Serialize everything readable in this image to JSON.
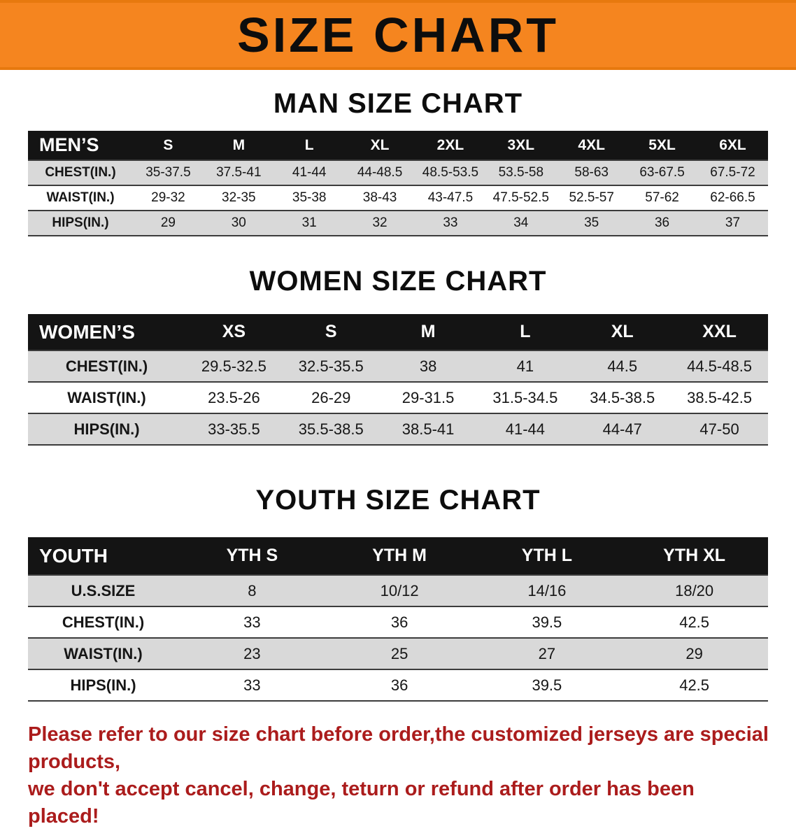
{
  "colors": {
    "banner_bg": "#F5851F",
    "table_header_bg": "#141414",
    "row_alt_gray": "#D9D9D9",
    "footer_text": "#AB1C1C"
  },
  "banner": {
    "title": "SIZE CHART"
  },
  "sections": [
    {
      "heading": "MAN SIZE CHART",
      "table": {
        "header": [
          "MEN’S",
          "S",
          "M",
          "L",
          "XL",
          "2XL",
          "3XL",
          "4XL",
          "5XL",
          "6XL"
        ],
        "rows": [
          [
            "CHEST(IN.)",
            "35-37.5",
            "37.5-41",
            "41-44",
            "44-48.5",
            "48.5-53.5",
            "53.5-58",
            "58-63",
            "63-67.5",
            "67.5-72"
          ],
          [
            "WAIST(IN.)",
            "29-32",
            "32-35",
            "35-38",
            "38-43",
            "43-47.5",
            "47.5-52.5",
            "52.5-57",
            "57-62",
            "62-66.5"
          ],
          [
            "HIPS(IN.)",
            "29",
            "30",
            "31",
            "32",
            "33",
            "34",
            "35",
            "36",
            "37"
          ]
        ]
      }
    },
    {
      "heading": "WOMEN SIZE CHART",
      "table": {
        "header": [
          "WOMEN’S",
          "XS",
          "S",
          "M",
          "L",
          "XL",
          "XXL"
        ],
        "rows": [
          [
            "CHEST(IN.)",
            "29.5-32.5",
            "32.5-35.5",
            "38",
            "41",
            "44.5",
            "44.5-48.5"
          ],
          [
            "WAIST(IN.)",
            "23.5-26",
            "26-29",
            "29-31.5",
            "31.5-34.5",
            "34.5-38.5",
            "38.5-42.5"
          ],
          [
            "HIPS(IN.)",
            "33-35.5",
            "35.5-38.5",
            "38.5-41",
            "41-44",
            "44-47",
            "47-50"
          ]
        ]
      }
    },
    {
      "heading": "YOUTH SIZE CHART",
      "table": {
        "header": [
          "YOUTH",
          "YTH S",
          "YTH M",
          "YTH L",
          "YTH XL"
        ],
        "rows": [
          [
            "U.S.SIZE",
            "8",
            "10/12",
            "14/16",
            "18/20"
          ],
          [
            "CHEST(IN.)",
            "33",
            "36",
            "39.5",
            "42.5"
          ],
          [
            "WAIST(IN.)",
            "23",
            "25",
            "27",
            "29"
          ],
          [
            "HIPS(IN.)",
            "33",
            "36",
            "39.5",
            "42.5"
          ]
        ]
      }
    }
  ],
  "footer": {
    "lines": [
      "Please refer to our size chart before order,the customized jerseys are special products,",
      "we don't accept cancel, change, teturn or refund after order has been placed!"
    ]
  }
}
